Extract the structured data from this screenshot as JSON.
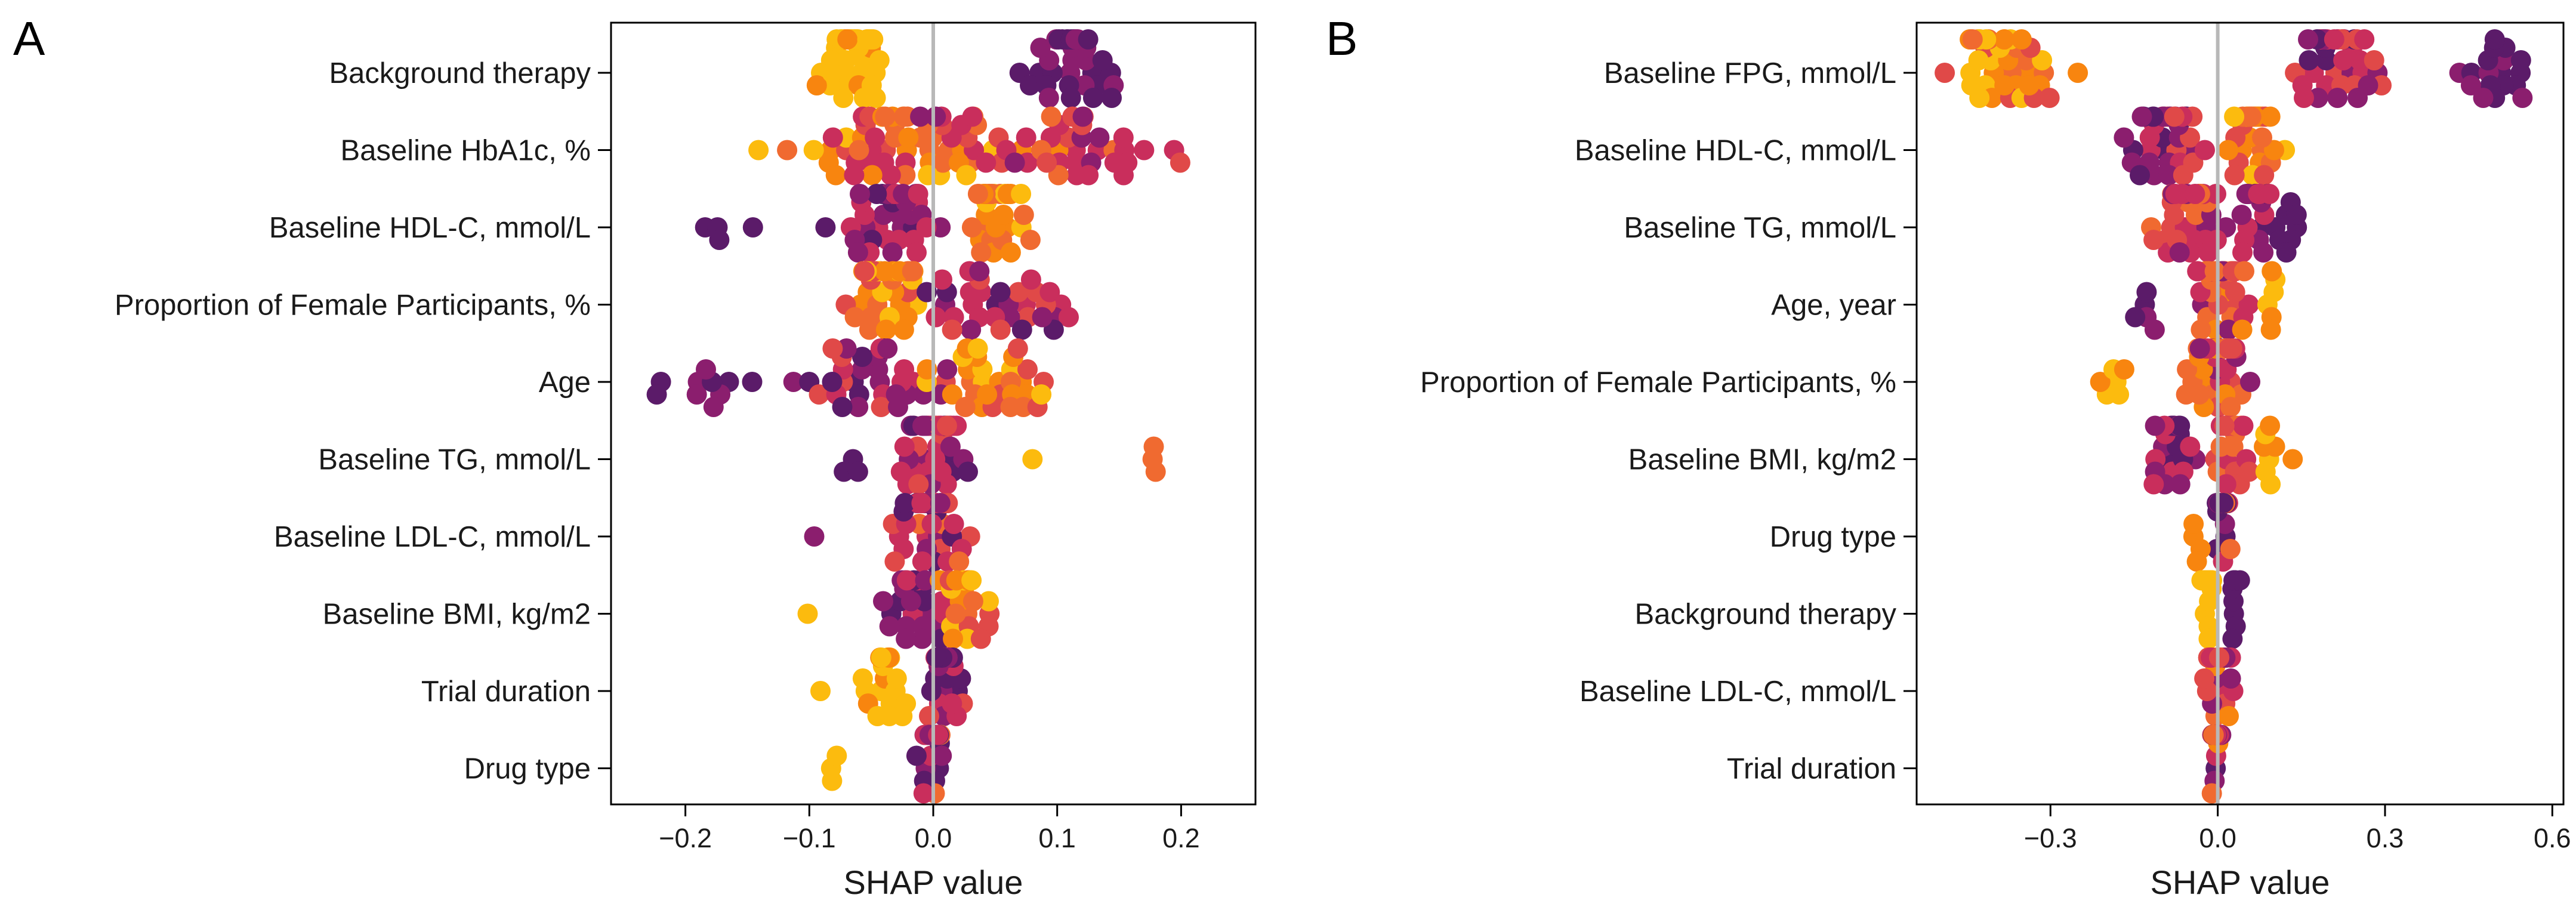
{
  "chart_data": [
    {
      "type": "scatter",
      "subtype": "shap-beeswarm",
      "panel_label": "A",
      "xlabel": "SHAP value",
      "xlim": [
        -0.26,
        0.26
      ],
      "xticks": [
        -0.2,
        -0.1,
        0.0,
        0.1,
        0.2
      ],
      "xtick_labels": [
        "−0.2",
        "−0.1",
        "0.0",
        "0.1",
        "0.2"
      ],
      "zero_line": true,
      "features": [
        {
          "name": "Background therapy",
          "clusters": [
            {
              "center": -0.065,
              "spread": 0.03,
              "n": 44,
              "colors": [
                0,
                0,
                0,
                0,
                0,
                1
              ]
            },
            {
              "center": 0.11,
              "spread": 0.055,
              "n": 36,
              "colors": [
                6,
                6,
                6,
                5,
                5
              ]
            }
          ]
        },
        {
          "name": "Baseline HbA1c, %",
          "clusters": [
            {
              "center": -0.02,
              "spread": 0.13,
              "n": 58,
              "colors": [
                1,
                2,
                3,
                4,
                1,
                2,
                4,
                0
              ]
            },
            {
              "center": 0.09,
              "spread": 0.13,
              "n": 40,
              "colors": [
                4,
                4,
                3,
                5,
                4,
                2
              ]
            }
          ]
        },
        {
          "name": "Baseline HDL-C, mmol/L",
          "clusters": [
            {
              "center": -0.04,
              "spread": 0.055,
              "n": 36,
              "colors": [
                5,
                4,
                5,
                6,
                4
              ]
            },
            {
              "center": 0.05,
              "spread": 0.035,
              "n": 30,
              "colors": [
                1,
                2,
                1,
                0,
                2
              ]
            },
            {
              "center": -0.17,
              "spread": 0.035,
              "n": 4,
              "colors": [
                6
              ]
            }
          ]
        },
        {
          "name": "Proportion of Female Participants, %",
          "clusters": [
            {
              "center": -0.04,
              "spread": 0.035,
              "n": 40,
              "colors": [
                1,
                2,
                1,
                0,
                3
              ]
            },
            {
              "center": 0.05,
              "spread": 0.085,
              "n": 34,
              "colors": [
                4,
                5,
                4,
                3,
                6
              ]
            }
          ]
        },
        {
          "name": "Age",
          "clusters": [
            {
              "center": -0.05,
              "spread": 0.075,
              "n": 34,
              "colors": [
                5,
                4,
                6,
                5,
                3
              ]
            },
            {
              "center": 0.04,
              "spread": 0.06,
              "n": 32,
              "colors": [
                1,
                0,
                2,
                1,
                3
              ]
            },
            {
              "center": -0.18,
              "spread": 0.05,
              "n": 10,
              "colors": [
                6,
                5
              ]
            }
          ]
        },
        {
          "name": "Baseline TG, mmol/L",
          "clusters": [
            {
              "center": 0.0,
              "spread": 0.035,
              "n": 42,
              "colors": [
                5,
                4,
                6,
                4,
                3
              ]
            },
            {
              "center": -0.08,
              "spread": 0.03,
              "n": 3,
              "colors": [
                6
              ]
            },
            {
              "center": 0.175,
              "spread": 0.006,
              "n": 3,
              "colors": [
                2
              ]
            },
            {
              "center": 0.08,
              "spread": 0.002,
              "n": 1,
              "colors": [
                0
              ]
            }
          ]
        },
        {
          "name": "Baseline LDL-C, mmol/L",
          "clusters": [
            {
              "center": 0.0,
              "spread": 0.04,
              "n": 44,
              "colors": [
                4,
                5,
                3,
                4,
                2,
                6
              ]
            },
            {
              "center": -0.095,
              "spread": 0.002,
              "n": 1,
              "colors": [
                5
              ]
            }
          ]
        },
        {
          "name": "Baseline BMI, kg/m2",
          "clusters": [
            {
              "center": -0.015,
              "spread": 0.03,
              "n": 26,
              "colors": [
                5,
                6,
                4,
                5
              ]
            },
            {
              "center": 0.025,
              "spread": 0.03,
              "n": 22,
              "colors": [
                1,
                0,
                2,
                3
              ]
            },
            {
              "center": -0.1,
              "spread": 0.002,
              "n": 1,
              "colors": [
                0
              ]
            }
          ]
        },
        {
          "name": "Trial duration",
          "clusters": [
            {
              "center": -0.04,
              "spread": 0.03,
              "n": 20,
              "colors": [
                0,
                0,
                1,
                0
              ]
            },
            {
              "center": 0.01,
              "spread": 0.025,
              "n": 26,
              "colors": [
                6,
                5,
                4,
                3,
                6
              ]
            },
            {
              "center": -0.09,
              "spread": 0.002,
              "n": 1,
              "colors": [
                0
              ]
            }
          ]
        },
        {
          "name": "Drug type",
          "clusters": [
            {
              "center": 0.0,
              "spread": 0.015,
              "n": 34,
              "colors": [
                6,
                6,
                5,
                4,
                2
              ]
            },
            {
              "center": -0.075,
              "spread": 0.018,
              "n": 3,
              "colors": [
                0
              ]
            }
          ]
        }
      ]
    },
    {
      "type": "scatter",
      "subtype": "shap-beeswarm",
      "panel_label": "B",
      "xlabel": "SHAP value",
      "xlim": [
        -0.54,
        0.62
      ],
      "xticks": [
        -0.3,
        0.0,
        0.3,
        0.6
      ],
      "xtick_labels": [
        "−0.3",
        "0.0",
        "0.3",
        "0.6"
      ],
      "zero_line": true,
      "features": [
        {
          "name": "Baseline FPG, mmol/L",
          "clusters": [
            {
              "center": -0.38,
              "spread": 0.13,
              "n": 40,
              "colors": [
                0,
                1,
                2,
                1,
                3,
                0
              ]
            },
            {
              "center": 0.2,
              "spread": 0.12,
              "n": 44,
              "colors": [
                3,
                4,
                5,
                4,
                6
              ]
            },
            {
              "center": 0.5,
              "spread": 0.07,
              "n": 18,
              "colors": [
                6,
                6,
                5
              ]
            }
          ]
        },
        {
          "name": "Baseline HDL-C, mmol/L",
          "clusters": [
            {
              "center": -0.08,
              "spread": 0.09,
              "n": 40,
              "colors": [
                5,
                6,
                4,
                5,
                3
              ]
            },
            {
              "center": 0.06,
              "spread": 0.065,
              "n": 38,
              "colors": [
                1,
                2,
                0,
                1,
                3
              ]
            }
          ]
        },
        {
          "name": "Baseline TG, mmol/L",
          "clusters": [
            {
              "center": -0.05,
              "spread": 0.08,
              "n": 36,
              "colors": [
                4,
                3,
                2,
                5,
                4
              ]
            },
            {
              "center": 0.09,
              "spread": 0.07,
              "n": 28,
              "colors": [
                6,
                5,
                6,
                4
              ]
            }
          ]
        },
        {
          "name": "Age, year",
          "clusters": [
            {
              "center": 0.0,
              "spread": 0.06,
              "n": 38,
              "colors": [
                3,
                2,
                4,
                1,
                5,
                2
              ]
            },
            {
              "center": -0.13,
              "spread": 0.03,
              "n": 5,
              "colors": [
                6,
                5
              ]
            },
            {
              "center": 0.1,
              "spread": 0.03,
              "n": 6,
              "colors": [
                0,
                1
              ]
            }
          ]
        },
        {
          "name": "Proportion of Female Participants, %",
          "clusters": [
            {
              "center": 0.0,
              "spread": 0.06,
              "n": 42,
              "colors": [
                1,
                2,
                3,
                4,
                2,
                5
              ]
            },
            {
              "center": -0.19,
              "spread": 0.045,
              "n": 6,
              "colors": [
                0,
                0,
                1
              ]
            }
          ]
        },
        {
          "name": "Baseline BMI, kg/m2",
          "clusters": [
            {
              "center": -0.08,
              "spread": 0.06,
              "n": 22,
              "colors": [
                5,
                6,
                4
              ]
            },
            {
              "center": 0.02,
              "spread": 0.045,
              "n": 22,
              "colors": [
                3,
                2,
                4
              ]
            },
            {
              "center": 0.1,
              "spread": 0.04,
              "n": 8,
              "colors": [
                0,
                1
              ]
            }
          ]
        },
        {
          "name": "Drug type",
          "clusters": [
            {
              "center": 0.01,
              "spread": 0.02,
              "n": 32,
              "colors": [
                6,
                6,
                5,
                4,
                2
              ]
            },
            {
              "center": -0.04,
              "spread": 0.015,
              "n": 4,
              "colors": [
                1
              ]
            }
          ]
        },
        {
          "name": "Background therapy",
          "clusters": [
            {
              "center": -0.02,
              "spread": 0.012,
              "n": 26,
              "colors": [
                0
              ]
            },
            {
              "center": 0.03,
              "spread": 0.012,
              "n": 10,
              "colors": [
                6
              ]
            }
          ]
        },
        {
          "name": "Baseline LDL-C, mmol/L",
          "clusters": [
            {
              "center": 0.0,
              "spread": 0.035,
              "n": 38,
              "colors": [
                4,
                3,
                5,
                2,
                1,
                4
              ]
            }
          ]
        },
        {
          "name": "Trial duration",
          "clusters": [
            {
              "center": -0.005,
              "spread": 0.012,
              "n": 34,
              "colors": [
                6,
                5,
                4,
                2,
                1
              ]
            }
          ]
        }
      ]
    }
  ],
  "palette": [
    "#fcbb0e",
    "#f8850f",
    "#f06a30",
    "#e04948",
    "#c92e5c",
    "#8b1e6e",
    "#5b1b69"
  ],
  "zero_line_color": "#b8b8b8"
}
